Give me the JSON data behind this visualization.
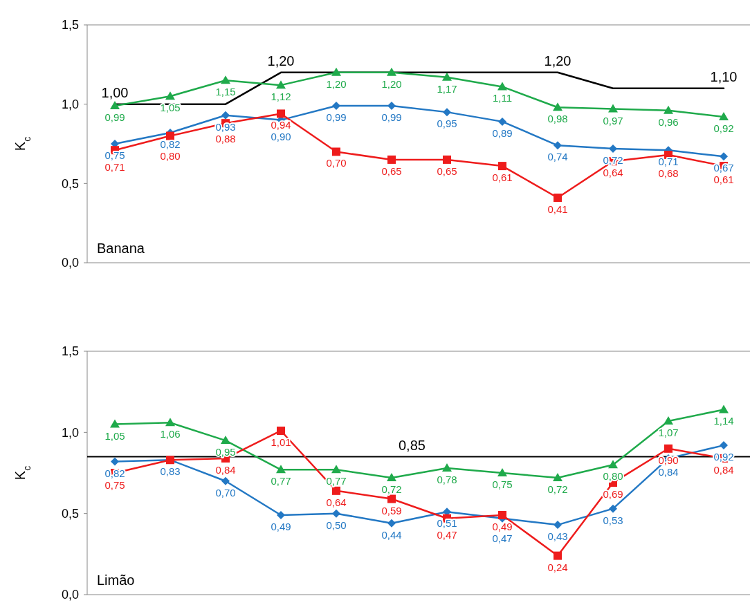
{
  "chart_data": [
    {
      "type": "line",
      "ylabel": "K$_{c}$",
      "annotations": [
        "Banana"
      ],
      "categories": [
        null,
        null,
        null,
        null,
        null,
        null,
        null,
        null,
        null,
        null,
        null,
        null
      ],
      "ylim": [
        0,
        1.5
      ],
      "yticks": [
        {
          "value": 0,
          "label": "0,0"
        },
        {
          "value": 0.5,
          "label": "0,5"
        },
        {
          "value": 1,
          "label": "1,0"
        },
        {
          "value": 1.5,
          "label": "1,5"
        }
      ],
      "grid": false,
      "tick_labels": "y",
      "series": [
        {
          "color": "#000000",
          "marker": "none",
          "values": [
            1.0,
            1.0,
            1.0,
            1.2,
            1.2,
            1.2,
            1.2,
            1.2,
            1.2,
            1.1,
            1.1,
            1.1
          ],
          "value_labels": [
            "1,00",
            null,
            null,
            "1,20",
            null,
            null,
            null,
            null,
            "1,20",
            null,
            null,
            "1,10"
          ]
        },
        {
          "color": "#1faa4b",
          "marker": "triangle",
          "values": [
            0.99,
            1.05,
            1.15,
            1.12,
            1.2,
            1.2,
            1.17,
            1.11,
            0.98,
            0.97,
            0.96,
            0.92
          ],
          "value_labels": [
            "0,99",
            "1,05",
            "1,15",
            "1,12",
            "1,20",
            "1,20",
            "1,17",
            "1,11",
            "0,98",
            "0,97",
            "0,96",
            "0,92"
          ]
        },
        {
          "color": "#2378c4",
          "marker": "diamond",
          "values": [
            0.75,
            0.82,
            0.93,
            0.9,
            0.99,
            0.99,
            0.95,
            0.89,
            0.74,
            0.72,
            0.71,
            0.67
          ],
          "value_labels": [
            "0,75",
            "0,82",
            "0,93",
            "0,90",
            "0,99",
            "0,99",
            "0,95",
            "0,89",
            "0,74",
            "0,72",
            "0,71",
            "0,67"
          ]
        },
        {
          "color": "#ee1c1c",
          "marker": "square",
          "values": [
            0.71,
            0.8,
            0.88,
            0.94,
            0.7,
            0.65,
            0.65,
            0.61,
            0.41,
            0.64,
            0.68,
            0.61
          ],
          "value_labels": [
            "0,71",
            "0,80",
            "0,88",
            "0,94",
            "0,70",
            "0,65",
            "0,65",
            "0,61",
            "0,41",
            "0,64",
            "0,68",
            "0,61"
          ]
        }
      ]
    },
    {
      "type": "line",
      "ylabel": "K$_{c}$",
      "annotations": [
        "Limão"
      ],
      "categories": [
        null,
        null,
        null,
        null,
        null,
        null,
        null,
        null,
        null,
        null,
        null,
        null
      ],
      "ylim": [
        0,
        1.5
      ],
      "yticks": [
        {
          "value": 0,
          "label": "0,0"
        },
        {
          "value": 0.5,
          "label": "0,5"
        },
        {
          "value": 1,
          "label": "1,0"
        },
        {
          "value": 1.5,
          "label": "1,5"
        }
      ],
      "grid": false,
      "tick_labels": "y",
      "ref_lines": [
        {
          "axis": "y",
          "value": 0.85,
          "label": "0,85",
          "color": "#000000"
        }
      ],
      "series": [
        {
          "color": "#1faa4b",
          "marker": "triangle",
          "values": [
            1.05,
            1.06,
            0.95,
            0.77,
            0.77,
            0.72,
            0.78,
            0.75,
            0.72,
            0.8,
            1.07,
            1.14
          ],
          "value_labels": [
            "1,05",
            "1,06",
            "0,95",
            "0,77",
            "0,77",
            "0,72",
            "0,78",
            "0,75",
            "0,72",
            "0,80",
            "1,07",
            "1,14"
          ]
        },
        {
          "color": "#2378c4",
          "marker": "diamond",
          "values": [
            0.82,
            0.83,
            0.7,
            0.49,
            0.5,
            0.44,
            0.51,
            0.47,
            0.43,
            0.53,
            0.84,
            0.92
          ],
          "value_labels": [
            "0,82",
            "0,83",
            "0,70",
            "0,49",
            "0,50",
            "0,44",
            "0,51",
            "0,47",
            "0,43",
            "0,53",
            "0,84",
            "0,92"
          ]
        },
        {
          "color": "#ee1c1c",
          "marker": "square",
          "values": [
            0.75,
            0.83,
            0.84,
            1.01,
            0.64,
            0.59,
            0.47,
            0.49,
            0.24,
            0.69,
            0.9,
            0.84
          ],
          "value_labels": [
            "0,75",
            null,
            "0,84",
            "1,01",
            "0,64",
            "0,59",
            "0,47",
            "0,49",
            "0,24",
            "0,69",
            "0,90",
            "0,84"
          ]
        }
      ]
    }
  ]
}
